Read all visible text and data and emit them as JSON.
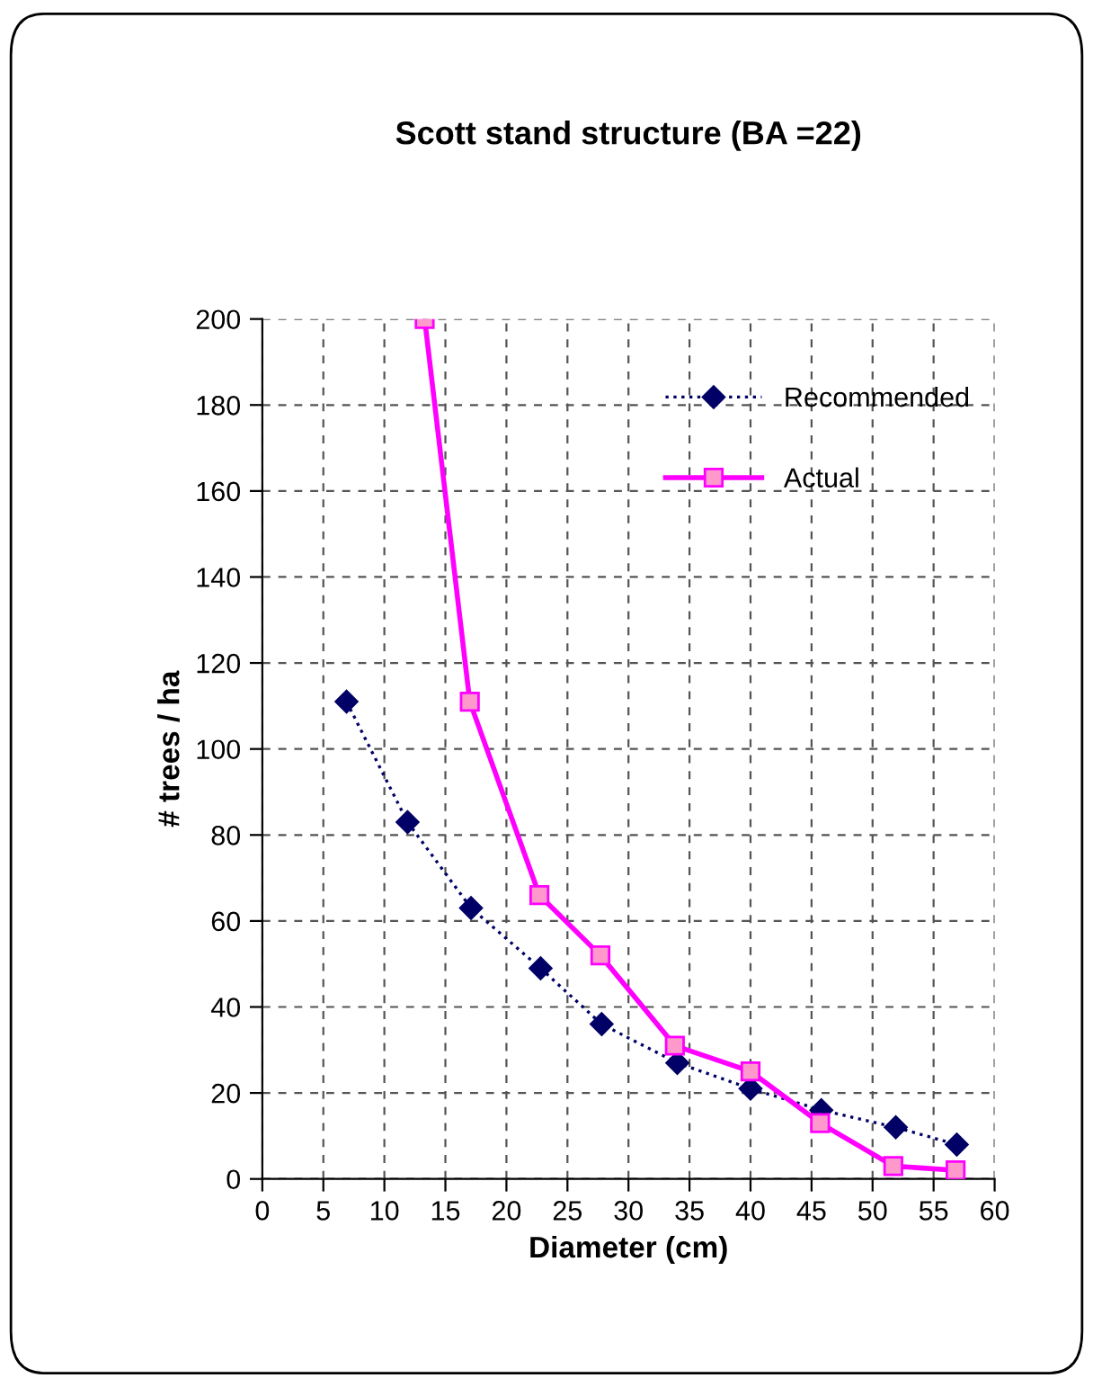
{
  "chart_data": {
    "type": "line",
    "title": "Scott stand structure (BA =22)",
    "xlabel": "Diameter (cm)",
    "ylabel": "# trees / ha",
    "xlim": [
      0,
      60
    ],
    "xticks": [
      0,
      5,
      10,
      15,
      20,
      25,
      30,
      35,
      40,
      45,
      50,
      55,
      60
    ],
    "ylim": [
      0,
      200
    ],
    "yticks": [
      0,
      20,
      40,
      60,
      80,
      100,
      120,
      140,
      160,
      180,
      200
    ],
    "grid": true,
    "legend": "top right",
    "series": [
      {
        "name": "Recommended",
        "color": "#000066",
        "marker": "diamond",
        "line_style": "dotted",
        "x": [
          6.9,
          11.9,
          17.1,
          22.8,
          27.8,
          34.0,
          40.0,
          45.8,
          51.9,
          56.9
        ],
        "values": [
          111,
          83,
          63,
          49,
          36,
          27,
          21,
          16,
          12,
          8
        ]
      },
      {
        "name": "Actual",
        "color": "#ff00ff",
        "marker": "square",
        "line_style": "solid",
        "x": [
          13.3,
          17.0,
          22.7,
          27.7,
          33.8,
          40.0,
          45.7,
          51.7,
          56.8
        ],
        "values": [
          200,
          111,
          66,
          52,
          31,
          25,
          13,
          3,
          2
        ]
      }
    ]
  }
}
